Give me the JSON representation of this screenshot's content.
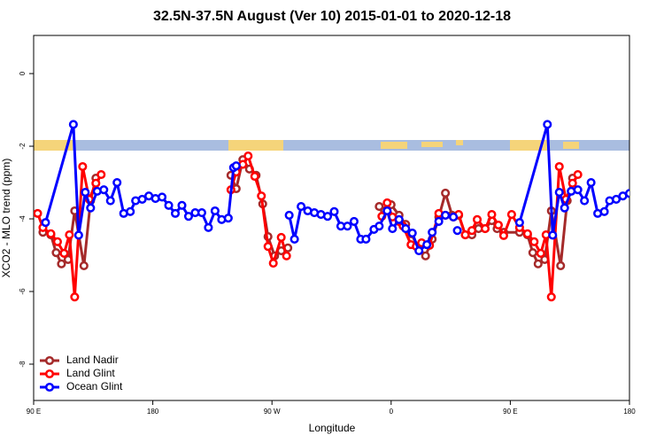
{
  "chart_data": {
    "type": "line",
    "title": "32.5N-37.5N August (Ver 10)   2015-01-01 to 2020-12-18",
    "xlabel": "Longitude",
    "ylabel": "XCO2 - MLO trend (ppm)",
    "xlim": [
      90,
      540
    ],
    "ylim": [
      -9,
      1.05
    ],
    "xticks": [
      {
        "value": 90,
        "label": "90 E"
      },
      180,
      {
        "value": 270,
        "label": "90 W"
      },
      {
        "value": 360,
        "label": "0"
      },
      {
        "value": 450,
        "label": "90 E"
      },
      {
        "value": 540,
        "label": "180"
      }
    ],
    "yticks": [
      0,
      -2,
      -4,
      -6,
      -8
    ],
    "legend": "bottom-left",
    "series": [
      {
        "name": "Land Nadir",
        "color": "#a52a2a",
        "x": [
          97,
          103,
          107,
          111,
          116,
          121,
          128,
          133,
          137,
          200,
          239,
          243,
          248,
          253,
          258,
          263,
          267,
          272,
          277,
          282,
          320,
          351,
          355,
          360,
          366,
          371,
          375,
          381,
          386,
          391,
          396,
          401,
          406,
          411,
          416,
          421,
          426,
          431,
          436,
          440,
          445,
          457,
          463,
          467,
          471,
          476,
          481,
          488,
          493,
          497
        ],
        "values": [
          -4.37,
          -4.44,
          -4.93,
          -5.24,
          -5.12,
          -3.78,
          -5.29,
          -3.5,
          -2.88,
          null,
          -2.8,
          -3.17,
          -2.37,
          -2.63,
          -2.8,
          -3.59,
          -4.49,
          -5.02,
          -4.88,
          -4.8,
          null,
          -3.66,
          -3.78,
          -3.61,
          -3.9,
          -4.15,
          -4.41,
          -4.8,
          -5.02,
          -4.56,
          -3.95,
          -3.29,
          -3.9,
          -3.9,
          -4.44,
          -4.44,
          -4.27,
          -4.27,
          -4.05,
          -4.27,
          -4.37,
          -4.37,
          -4.44,
          -4.93,
          -5.24,
          -5.12,
          -3.78,
          -5.29,
          -3.5,
          -2.88
        ]
      },
      {
        "name": "Land Glint",
        "color": "#ff0000",
        "x": [
          93,
          97,
          103,
          108,
          113,
          117,
          121,
          127,
          132,
          137,
          141,
          200,
          239,
          243,
          248,
          252,
          257,
          262,
          267,
          271,
          277,
          281,
          320,
          353,
          357,
          361,
          366,
          369,
          375,
          379,
          383,
          389,
          396,
          401,
          407,
          411,
          416,
          421,
          425,
          431,
          436,
          441,
          445,
          451,
          457,
          463,
          468,
          473,
          477,
          481,
          487,
          492,
          497,
          501
        ],
        "values": [
          -3.85,
          -4.24,
          -4.41,
          -4.63,
          -4.95,
          -4.44,
          -6.15,
          -2.56,
          -3.46,
          -3.02,
          -2.78,
          null,
          -3.2,
          -2.71,
          -2.5,
          -2.27,
          -2.83,
          -3.37,
          -4.76,
          -5.22,
          -4.51,
          -5.02,
          null,
          -3.93,
          -3.56,
          -3.95,
          -4.07,
          -4.2,
          -4.71,
          -4.76,
          -4.66,
          -4.73,
          -3.85,
          -3.9,
          -3.95,
          -3.88,
          -4.44,
          -4.32,
          -4.02,
          -4.27,
          -3.88,
          -4.17,
          -4.46,
          -3.88,
          -4.24,
          -4.41,
          -4.63,
          -4.95,
          -4.44,
          -6.15,
          -2.56,
          -3.46,
          -3.02,
          -2.78
        ]
      },
      {
        "name": "Ocean Glint",
        "color": "#0000ff",
        "x": [
          99,
          120,
          124,
          129,
          133,
          138,
          143,
          148,
          153,
          158,
          163,
          167,
          172,
          177,
          182,
          187,
          192,
          197,
          202,
          207,
          212,
          217,
          222,
          227,
          232,
          237,
          241,
          243,
          260,
          283,
          287,
          292,
          297,
          302,
          307,
          312,
          317,
          322,
          327,
          332,
          337,
          341,
          347,
          351,
          357,
          361,
          366,
          371,
          376,
          381,
          387,
          391,
          396,
          401,
          407,
          409,
          410,
          430,
          457,
          478,
          482,
          487,
          491,
          496,
          501,
          506,
          511,
          516,
          521,
          525,
          530,
          535,
          540
        ],
        "values": [
          -4.1,
          -1.4,
          -4.45,
          -3.27,
          -3.7,
          -3.24,
          -3.2,
          -3.5,
          -3.0,
          -3.85,
          -3.8,
          -3.5,
          -3.46,
          -3.37,
          -3.44,
          -3.4,
          -3.63,
          -3.85,
          -3.63,
          -3.93,
          -3.83,
          -3.83,
          -4.24,
          -3.78,
          -4.02,
          -3.98,
          -2.59,
          -2.54,
          null,
          -3.9,
          -4.56,
          -3.66,
          -3.78,
          -3.83,
          -3.88,
          -3.93,
          -3.8,
          -4.2,
          -4.2,
          -4.07,
          -4.56,
          -4.56,
          -4.29,
          -4.2,
          -3.78,
          -4.27,
          -4.02,
          -4.27,
          -4.39,
          -4.88,
          -4.71,
          -4.37,
          -4.07,
          -3.9,
          -3.95,
          null,
          -4.32,
          null,
          -4.1,
          -1.4,
          -4.45,
          -3.27,
          -3.7,
          -3.24,
          -3.2,
          -3.5,
          -3.0,
          -3.85,
          -3.8,
          -3.5,
          -3.46,
          -3.37,
          -3.3
        ]
      }
    ]
  }
}
